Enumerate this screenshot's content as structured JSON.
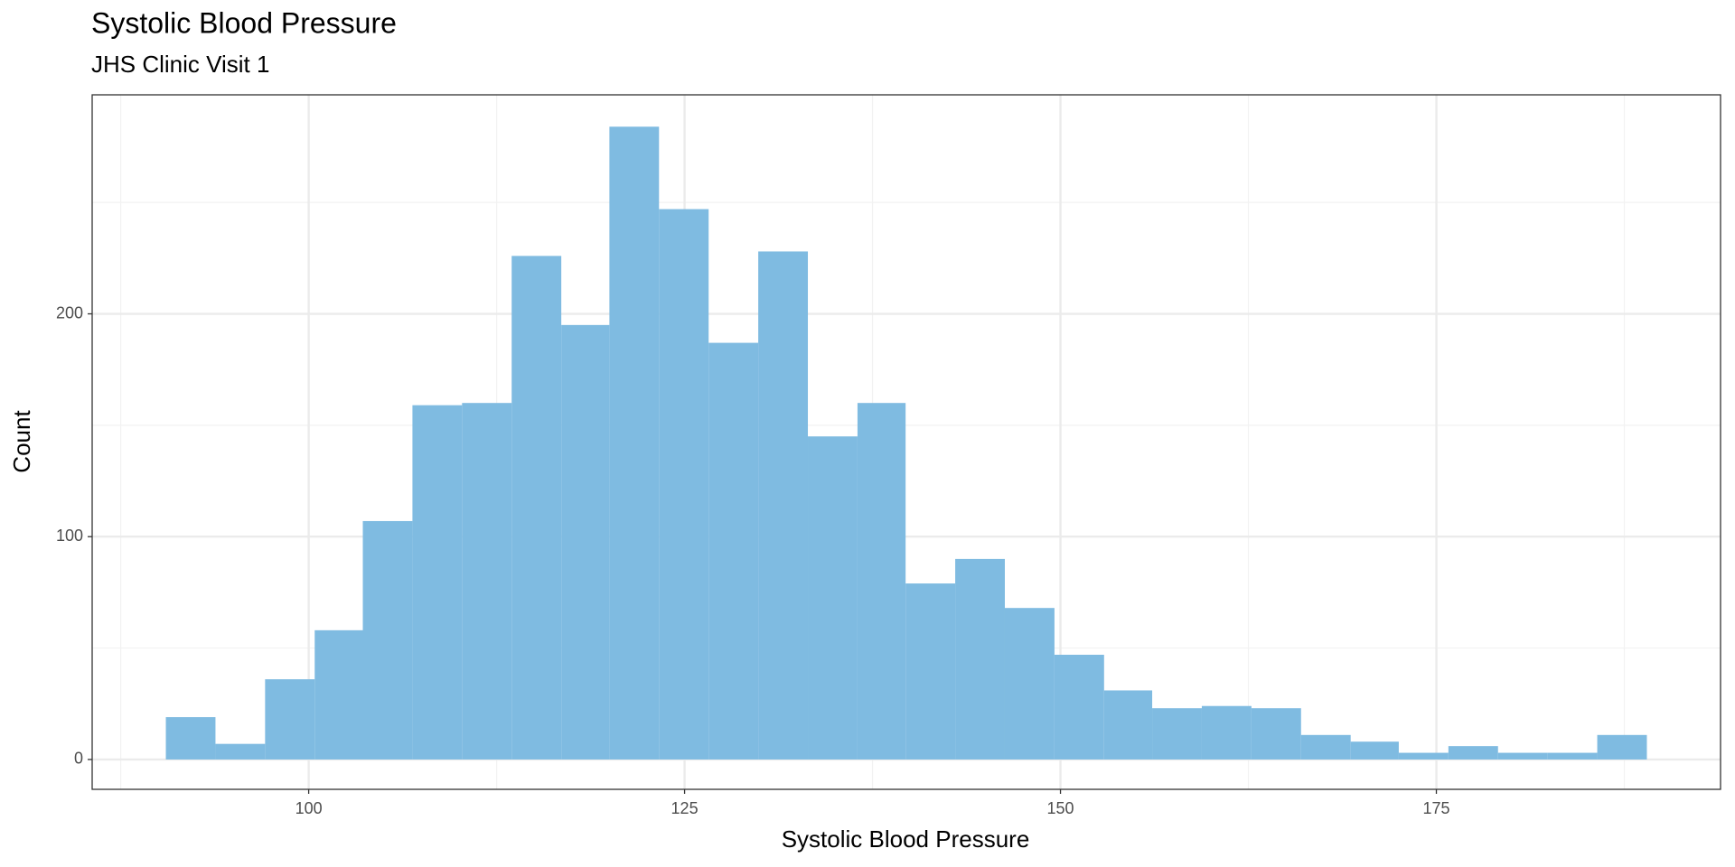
{
  "chart_data": {
    "type": "histogram",
    "title": "Systolic Blood Pressure",
    "subtitle": "JHS Clinic Visit 1",
    "x_label": "Systolic Blood Pressure",
    "y_label": "Count",
    "bins": [
      90.5,
      93.8,
      97.1,
      100.4,
      103.6,
      106.9,
      110.2,
      113.5,
      116.8,
      120.0,
      123.3,
      126.6,
      129.9,
      133.2,
      136.5,
      139.7,
      143.0,
      146.3,
      149.6,
      152.9,
      156.1,
      159.4,
      162.7,
      166.0,
      169.3,
      172.5,
      175.8,
      179.1,
      182.4,
      185.7,
      189.0
    ],
    "values": [
      19,
      7,
      36,
      58,
      107,
      159,
      160,
      226,
      195,
      284,
      247,
      187,
      228,
      145,
      160,
      79,
      90,
      68,
      47,
      31,
      23,
      24,
      23,
      11,
      8,
      3,
      6,
      3,
      3,
      11
    ],
    "color": "#7fbbe1",
    "xlim": [
      85.6,
      193.9
    ],
    "xticks": [
      100,
      125,
      150,
      175
    ],
    "x_minor_ticks": [
      87.5,
      112.5,
      137.5,
      162.5,
      187.5
    ],
    "ylim": [
      -13.4,
      298.3
    ],
    "yticks": [
      0,
      100,
      200
    ],
    "y_minor_ticks": [
      50,
      150,
      250
    ],
    "grid": true
  }
}
